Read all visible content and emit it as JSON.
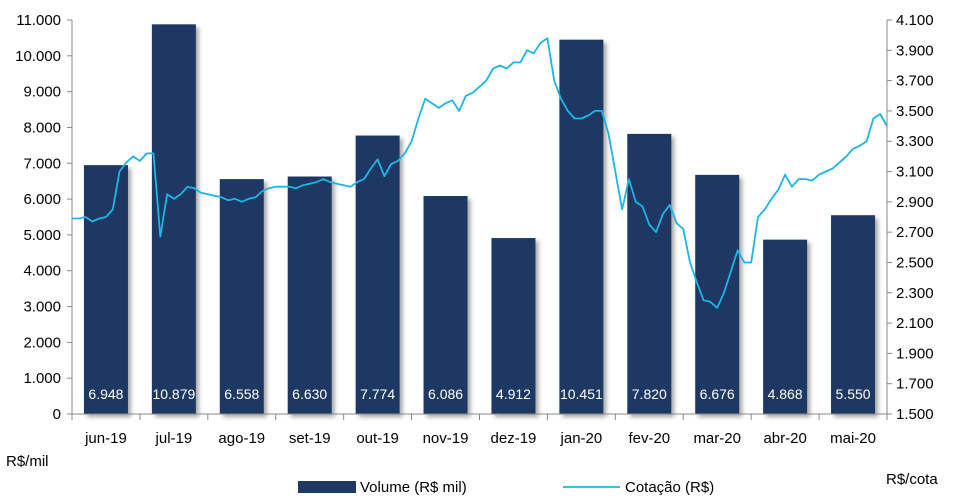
{
  "chart_data": {
    "type": "bar+line",
    "categories": [
      "jun-19",
      "jul-19",
      "ago-19",
      "set-19",
      "out-19",
      "nov-19",
      "dez-19",
      "jan-20",
      "fev-20",
      "mar-20",
      "abr-20",
      "mai-20"
    ],
    "bar_series": {
      "name": "Volume (R$ mil)",
      "values": [
        6948,
        10879,
        6558,
        6630,
        7774,
        6086,
        4912,
        10451,
        7820,
        6676,
        4868,
        5550
      ],
      "labels": [
        "6.948",
        "10.879",
        "6.558",
        "6.630",
        "7.774",
        "6.086",
        "4.912",
        "10.451",
        "7.820",
        "6.676",
        "4.868",
        "5.550"
      ],
      "color": "#1f3864"
    },
    "line_series": {
      "name": "Cotação (R$)",
      "color": "#1eb4e6",
      "x": [
        -0.5,
        -0.4,
        -0.3,
        -0.2,
        -0.1,
        0.0,
        0.1,
        0.2,
        0.3,
        0.4,
        0.5,
        0.6,
        0.7,
        0.8,
        0.9,
        1.0,
        1.1,
        1.2,
        1.3,
        1.4,
        1.5,
        1.6,
        1.7,
        1.8,
        1.9,
        2.0,
        2.1,
        2.2,
        2.3,
        2.4,
        2.5,
        2.6,
        2.7,
        2.8,
        2.9,
        3.0,
        3.1,
        3.2,
        3.3,
        3.4,
        3.5,
        3.6,
        3.7,
        3.8,
        3.9,
        4.0,
        4.1,
        4.2,
        4.3,
        4.4,
        4.5,
        4.6,
        4.7,
        4.8,
        4.9,
        5.0,
        5.1,
        5.2,
        5.3,
        5.4,
        5.5,
        5.6,
        5.7,
        5.8,
        5.9,
        6.0,
        6.1,
        6.2,
        6.3,
        6.4,
        6.5,
        6.6,
        6.7,
        6.8,
        6.9,
        7.0,
        7.1,
        7.2,
        7.3,
        7.4,
        7.5,
        7.6,
        7.7,
        7.8,
        7.9,
        8.0,
        8.1,
        8.2,
        8.3,
        8.4,
        8.5,
        8.6,
        8.7,
        8.8,
        8.9,
        9.0,
        9.1,
        9.2,
        9.3,
        9.4,
        9.5,
        9.6,
        9.7,
        9.8,
        9.9,
        10.0,
        10.1,
        10.2,
        10.3,
        10.4,
        10.5,
        10.6,
        10.7,
        10.8,
        10.9,
        11.0,
        11.1,
        11.2,
        11.3,
        11.4,
        11.5
      ],
      "values": [
        2.79,
        2.79,
        2.8,
        2.77,
        2.79,
        2.8,
        2.85,
        3.1,
        3.16,
        3.2,
        3.17,
        3.22,
        3.22,
        2.67,
        2.95,
        2.92,
        2.95,
        3.0,
        2.99,
        2.96,
        2.95,
        2.94,
        2.93,
        2.91,
        2.92,
        2.9,
        2.92,
        2.93,
        2.97,
        2.99,
        3.0,
        3.0,
        3.0,
        2.99,
        3.01,
        3.02,
        3.03,
        3.05,
        3.03,
        3.02,
        3.01,
        3.0,
        3.03,
        3.05,
        3.12,
        3.18,
        3.07,
        3.15,
        3.17,
        3.22,
        3.3,
        3.45,
        3.58,
        3.55,
        3.52,
        3.55,
        3.57,
        3.5,
        3.6,
        3.62,
        3.66,
        3.7,
        3.78,
        3.8,
        3.78,
        3.82,
        3.82,
        3.9,
        3.88,
        3.95,
        3.98,
        3.7,
        3.58,
        3.5,
        3.45,
        3.45,
        3.47,
        3.5,
        3.5,
        3.35,
        3.1,
        2.85,
        3.05,
        2.9,
        2.87,
        2.75,
        2.7,
        2.82,
        2.88,
        2.76,
        2.72,
        2.5,
        2.37,
        2.25,
        2.24,
        2.2,
        2.3,
        2.44,
        2.58,
        2.5,
        2.5,
        2.8,
        2.85,
        2.92,
        2.98,
        3.08,
        3.0,
        3.05,
        3.05,
        3.04,
        3.08,
        3.1,
        3.12,
        3.16,
        3.2,
        3.25,
        3.27,
        3.3,
        3.45,
        3.48,
        3.4
      ]
    },
    "y_left": {
      "min": 0,
      "max": 11000,
      "step": 1000,
      "tick_labels": [
        "0",
        "1.000",
        "2.000",
        "3.000",
        "4.000",
        "5.000",
        "6.000",
        "7.000",
        "8.000",
        "9.000",
        "10.000",
        "11.000"
      ],
      "unit": "R$/mil"
    },
    "y_right": {
      "min": 1.5,
      "max": 4.1,
      "step": 0.2,
      "tick_labels": [
        "1.500",
        "1.700",
        "1.900",
        "2.100",
        "2.300",
        "2.500",
        "2.700",
        "2.900",
        "3.100",
        "3.300",
        "3.500",
        "3.700",
        "3.900",
        "4.100"
      ],
      "unit": "R$/cota"
    },
    "grid": false,
    "legend": {
      "placement": "bottom",
      "items": [
        {
          "type": "bar",
          "label": "Volume (R$ mil)"
        },
        {
          "type": "line",
          "label": "Cotação (R$)"
        }
      ]
    }
  }
}
